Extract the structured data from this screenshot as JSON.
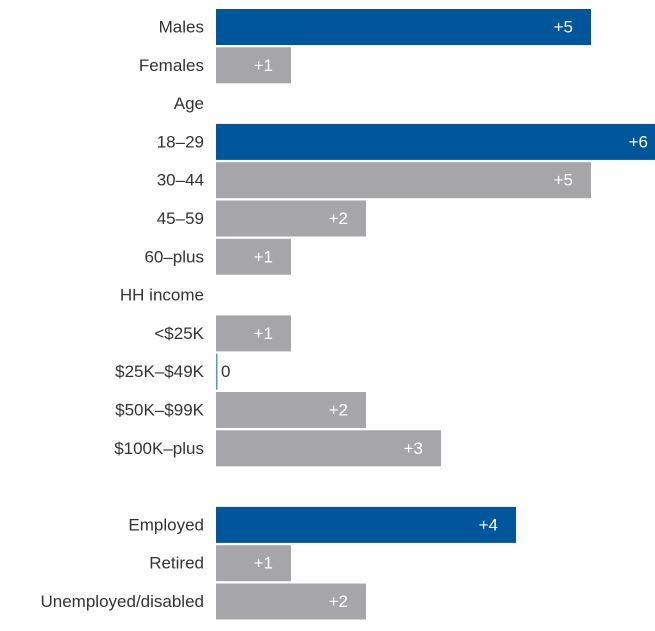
{
  "colors": {
    "highlight": "#00569b",
    "default": "#a6a6a9",
    "zero_line": "#4aa6a0"
  },
  "chart_data": {
    "type": "bar",
    "orientation": "horizontal",
    "title": "",
    "xlabel": "",
    "ylabel": "",
    "xlim": [
      0,
      6
    ],
    "grid": false,
    "legend": "none",
    "rows": [
      {
        "label": "Males",
        "value": 5,
        "text": "+5",
        "highlight": true
      },
      {
        "label": "Females",
        "value": 1,
        "text": "+1",
        "highlight": false
      },
      {
        "label": "Age",
        "header": true
      },
      {
        "label": "18–29",
        "value": 6,
        "text": "+6",
        "highlight": true
      },
      {
        "label": "30–44",
        "value": 5,
        "text": "+5",
        "highlight": false
      },
      {
        "label": "45–59",
        "value": 2,
        "text": "+2",
        "highlight": false
      },
      {
        "label": "60–plus",
        "value": 1,
        "text": "+1",
        "highlight": false
      },
      {
        "label": "HH income",
        "header": true
      },
      {
        "label": "<$25K",
        "value": 1,
        "text": "+1",
        "highlight": false
      },
      {
        "label": "$25K–$49K",
        "value": 0,
        "text": "0",
        "highlight": false
      },
      {
        "label": "$50K–$99K",
        "value": 2,
        "text": "+2",
        "highlight": false
      },
      {
        "label": "$100K–plus",
        "value": 3,
        "text": "+3",
        "highlight": false
      },
      {
        "label": "",
        "spacer": true
      },
      {
        "label": "Employed",
        "value": 4,
        "text": "+4",
        "highlight": true
      },
      {
        "label": "Retired",
        "value": 1,
        "text": "+1",
        "highlight": false
      },
      {
        "label": "Unemployed/disabled",
        "value": 2,
        "text": "+2",
        "highlight": false
      }
    ]
  }
}
